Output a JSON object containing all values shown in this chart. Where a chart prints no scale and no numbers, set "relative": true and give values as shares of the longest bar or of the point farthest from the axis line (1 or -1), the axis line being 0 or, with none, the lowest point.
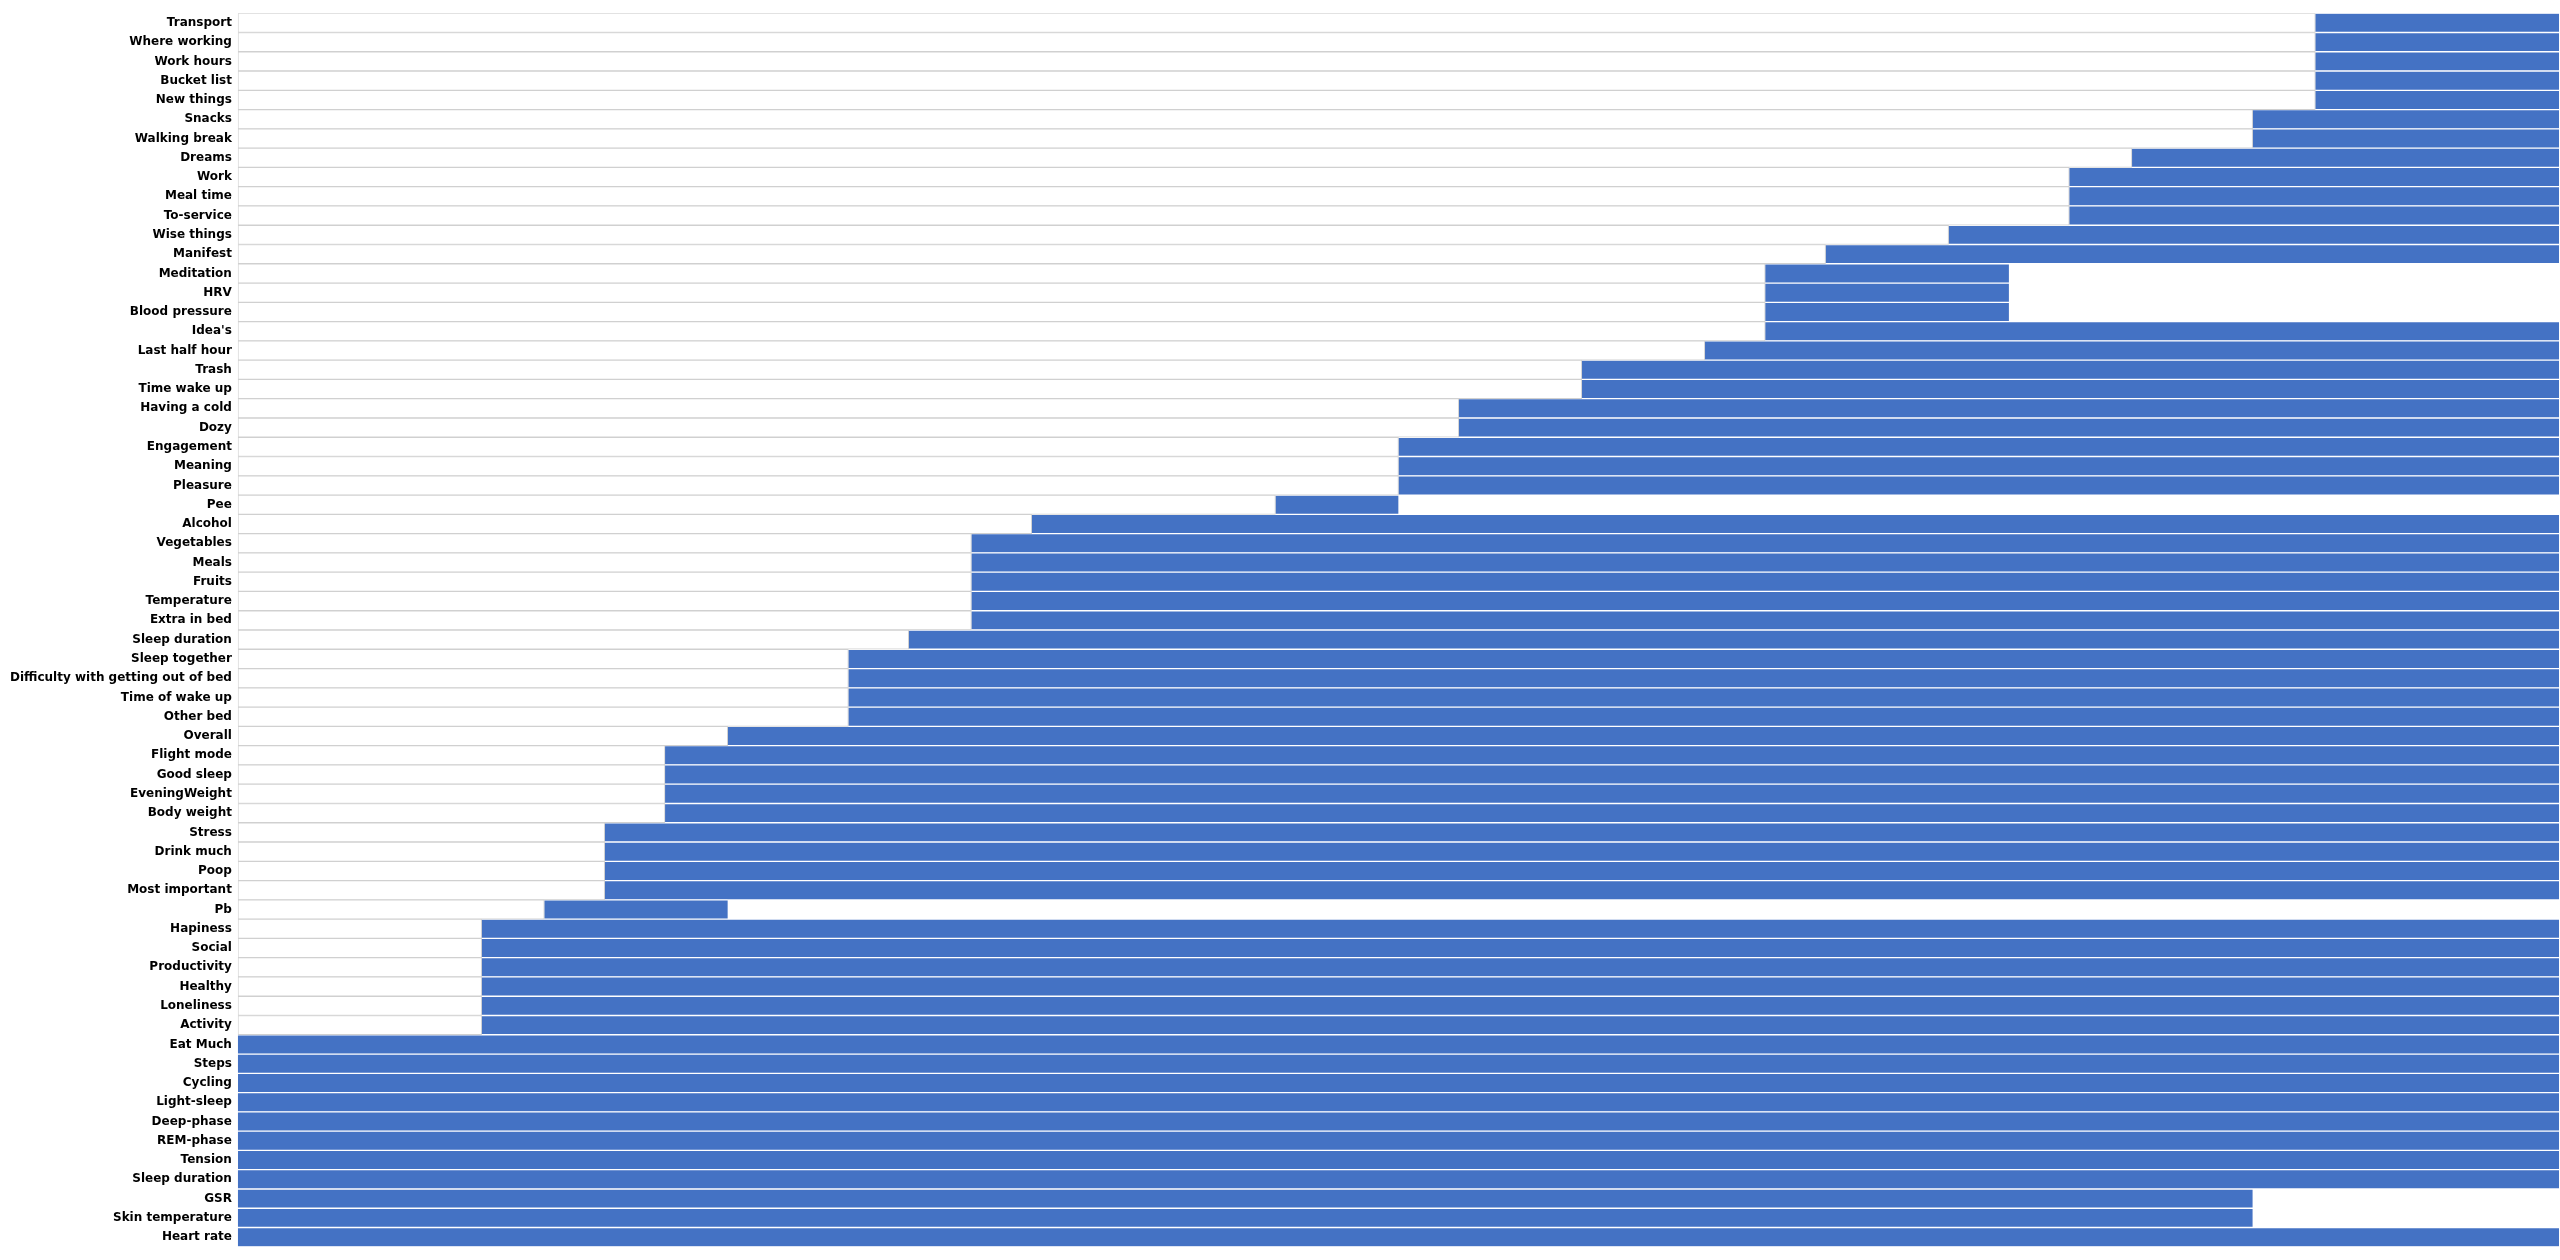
{
  "chart_data": {
    "type": "bar",
    "orientation": "horizontal",
    "relative": true,
    "stacked": true,
    "tick_labels": "y",
    "categories": [
      "Transport",
      "Where working",
      "Work hours",
      "Bucket list",
      "New things",
      "Snacks",
      "Walking break",
      "Dreams",
      "Work",
      "Meal time",
      "To-service",
      "Wise things",
      "Manifest",
      "Meditation",
      "HRV",
      "Blood pressure",
      "Idea's",
      "Last half hour",
      "Trash",
      "Time wake up",
      "Having a cold",
      "Dozy",
      "Engagement",
      "Meaning",
      "Pleasure",
      "Pee",
      "Alcohol",
      "Vegetables",
      "Meals",
      "Fruits",
      "Temperature",
      "Extra in bed",
      "Sleep duration",
      "Sleep together",
      "Difficulty with getting out of bed",
      "Time of wake up",
      "Other bed",
      "Overall",
      "Flight mode",
      "Good sleep",
      "EveningWeight",
      "Body weight",
      "Stress",
      "Drink much",
      "Poop",
      "Most important",
      "Pb",
      "Hapiness",
      "Social",
      "Productivity",
      "Healthy",
      "Loneliness",
      "Activity",
      "Eat Much",
      "Steps",
      "Cycling",
      "Light-sleep",
      "Deep-phase",
      "REM-phase",
      "Tension",
      "Sleep duration",
      "GSR",
      "Skin temperature",
      "Heart rate"
    ],
    "series": [
      {
        "color": "#ffffff",
        "values": [
          0.895,
          0.895,
          0.895,
          0.895,
          0.895,
          0.868,
          0.868,
          0.816,
          0.789,
          0.789,
          0.789,
          0.737,
          0.684,
          0.658,
          0.658,
          0.658,
          0.658,
          0.632,
          0.579,
          0.579,
          0.526,
          0.526,
          0.5,
          0.5,
          0.5,
          0.447,
          0.342,
          0.316,
          0.316,
          0.316,
          0.316,
          0.316,
          0.289,
          0.263,
          0.263,
          0.263,
          0.263,
          0.211,
          0.184,
          0.184,
          0.184,
          0.184,
          0.158,
          0.158,
          0.158,
          0.158,
          0.132,
          0.105,
          0.105,
          0.105,
          0.105,
          0.105,
          0.105,
          0,
          0,
          0,
          0,
          0,
          0,
          0,
          0,
          0,
          0,
          0
        ]
      },
      {
        "color": "#4472c4",
        "values": [
          0.105,
          0.105,
          0.105,
          0.105,
          0.105,
          0.132,
          0.132,
          0.184,
          0.211,
          0.211,
          0.211,
          0.263,
          0.316,
          0.105,
          0.105,
          0.105,
          0.342,
          0.368,
          0.421,
          0.421,
          0.474,
          0.474,
          0.5,
          0.5,
          0.5,
          0.053,
          0.658,
          0.684,
          0.684,
          0.684,
          0.684,
          0.684,
          0.711,
          0.737,
          0.737,
          0.737,
          0.737,
          0.789,
          0.816,
          0.816,
          0.816,
          0.816,
          0.842,
          0.842,
          0.842,
          0.842,
          0.079,
          0.895,
          0.895,
          0.895,
          0.895,
          0.895,
          0.895,
          1,
          1,
          1,
          1,
          1,
          1,
          1,
          1,
          0.868,
          0.868,
          1
        ]
      }
    ]
  }
}
